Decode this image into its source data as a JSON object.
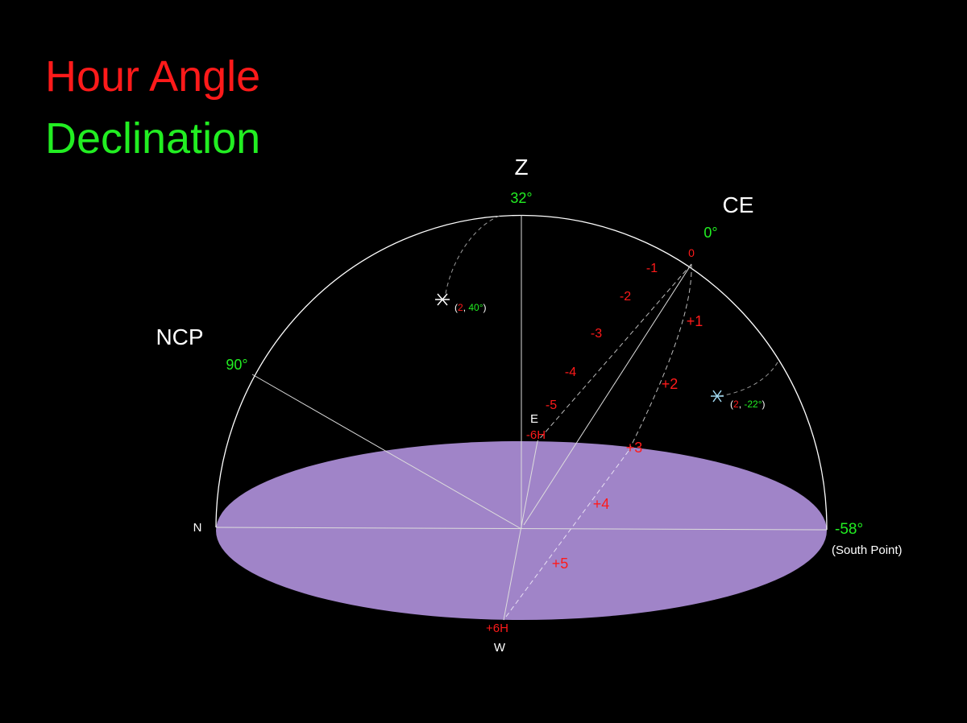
{
  "title": {
    "line1": "Hour Angle",
    "line2": "Declination"
  },
  "points": {
    "zenith": {
      "label": "Z",
      "declination": "32°"
    },
    "celestial_equator": {
      "label": "CE",
      "declination": "0°"
    },
    "ncp": {
      "label": "NCP",
      "declination": "90°"
    },
    "north": {
      "label": "N"
    },
    "south": {
      "declination": "-58°",
      "label": "(South Point)"
    },
    "east": {
      "label": "E",
      "hour": "-6H"
    },
    "west": {
      "label": "W",
      "hour": "+6H"
    }
  },
  "hour_marks": {
    "rising": [
      "0",
      "-1",
      "-2",
      "-3",
      "-4",
      "-5"
    ],
    "setting": [
      "+1",
      "+2",
      "+3",
      "+4",
      "+5"
    ]
  },
  "stars": [
    {
      "prefix": "(",
      "hour": "2",
      "separator": ", ",
      "declination": "40°",
      "suffix": ")"
    },
    {
      "prefix": "(",
      "hour": "2",
      "separator": ", ",
      "declination": "-22°",
      "suffix": ")"
    }
  ]
}
